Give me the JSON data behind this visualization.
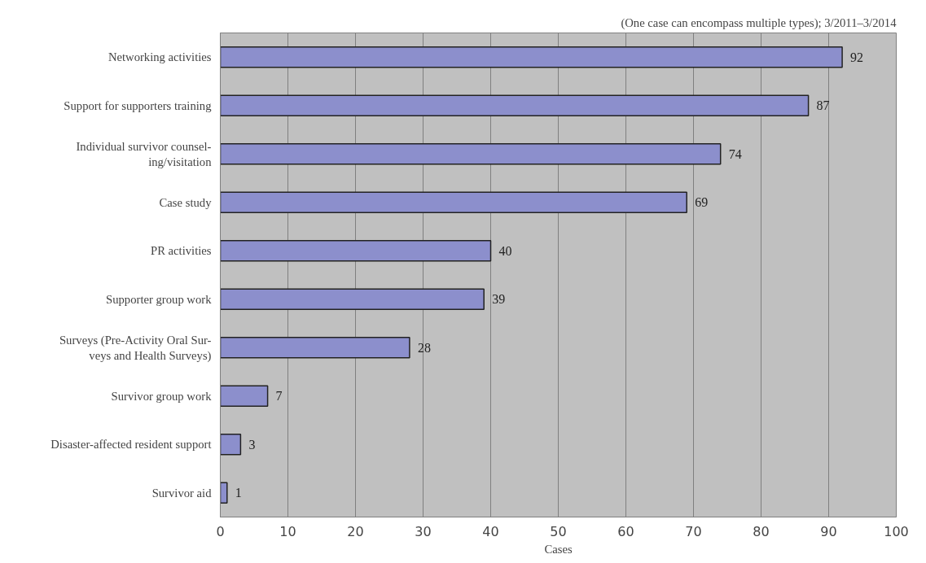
{
  "chart_data": {
    "type": "bar",
    "orientation": "horizontal",
    "annotations": [
      "(One case can encompass multiple types); 3/2011–3/2014"
    ],
    "xlabel": "Cases",
    "categories": [
      "Networking activities",
      "Support for supporters training",
      "Individual survivor counsel-\ning/visitation",
      "Case study",
      "PR activities",
      "Supporter group work",
      "Surveys (Pre-Activity Oral Sur-\nveys and Health Surveys)",
      "Survivor group work",
      "Disaster-affected resident support",
      "Survivor aid"
    ],
    "values": [
      92,
      87,
      74,
      69,
      40,
      39,
      28,
      7,
      3,
      1
    ],
    "color": "#8c8fcc",
    "xlim": [
      0,
      100
    ],
    "xticks": [
      0,
      10,
      20,
      30,
      40,
      50,
      60,
      70,
      80,
      90,
      100
    ],
    "grid": "x",
    "data_labels": true
  }
}
